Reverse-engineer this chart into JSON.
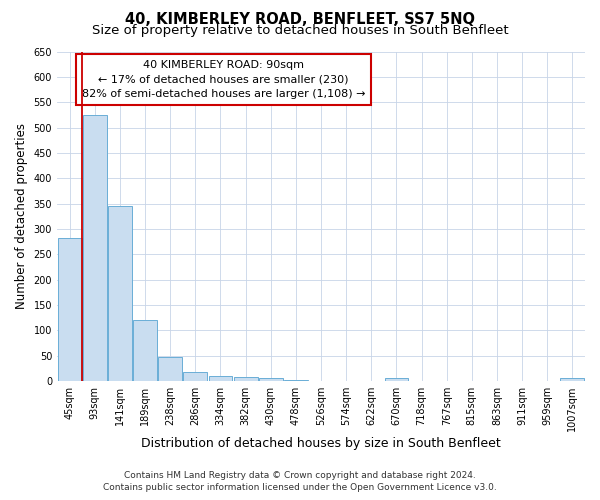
{
  "title": "40, KIMBERLEY ROAD, BENFLEET, SS7 5NQ",
  "subtitle": "Size of property relative to detached houses in South Benfleet",
  "xlabel": "Distribution of detached houses by size in South Benfleet",
  "ylabel": "Number of detached properties",
  "categories": [
    "45sqm",
    "93sqm",
    "141sqm",
    "189sqm",
    "238sqm",
    "286sqm",
    "334sqm",
    "382sqm",
    "430sqm",
    "478sqm",
    "526sqm",
    "574sqm",
    "622sqm",
    "670sqm",
    "718sqm",
    "767sqm",
    "815sqm",
    "863sqm",
    "911sqm",
    "959sqm",
    "1007sqm"
  ],
  "values": [
    283,
    525,
    345,
    120,
    48,
    18,
    11,
    9,
    6,
    3,
    0,
    0,
    0,
    6,
    0,
    0,
    0,
    0,
    0,
    0,
    6
  ],
  "bar_color": "#c9ddf0",
  "bar_edge_color": "#6aaed6",
  "annotation_line1": "40 KIMBERLEY ROAD: 90sqm",
  "annotation_line2": "← 17% of detached houses are smaller (230)",
  "annotation_line3": "82% of semi-detached houses are larger (1,108) →",
  "annotation_box_color": "white",
  "annotation_box_edge_color": "#cc0000",
  "red_line_color": "#cc0000",
  "ylim": [
    0,
    650
  ],
  "yticks": [
    0,
    50,
    100,
    150,
    200,
    250,
    300,
    350,
    400,
    450,
    500,
    550,
    600,
    650
  ],
  "grid_color": "#c8d4e8",
  "footnote_line1": "Contains HM Land Registry data © Crown copyright and database right 2024.",
  "footnote_line2": "Contains public sector information licensed under the Open Government Licence v3.0.",
  "title_fontsize": 10.5,
  "subtitle_fontsize": 9.5,
  "xlabel_fontsize": 9,
  "ylabel_fontsize": 8.5,
  "tick_fontsize": 7,
  "annotation_fontsize": 8,
  "footnote_fontsize": 6.5
}
